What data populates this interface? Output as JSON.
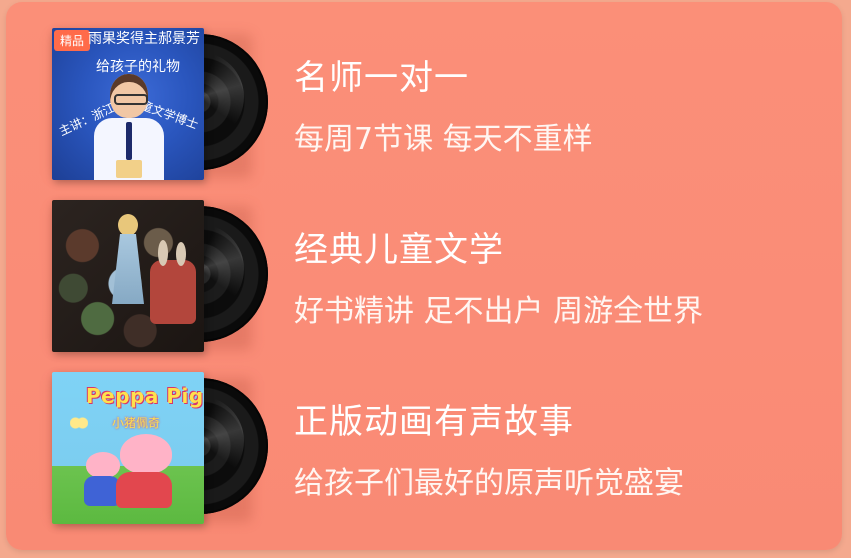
{
  "background_color": "#f4a98e",
  "card_color": "#fb8f78",
  "items": [
    {
      "title": "名师一对一",
      "subtitle": "每周7节课 每天不重样",
      "cover": {
        "badge": "精品",
        "line1": "雨果奖得主郝景芳",
        "line2": "给孩子的礼物",
        "left_text": "主讲：浙江大学",
        "right_text": "儿童文学博士"
      }
    },
    {
      "title": "经典儿童文学",
      "subtitle": "好书精讲 足不出户 周游全世界",
      "cover": {}
    },
    {
      "title": "正版动画有声故事",
      "subtitle": "给孩子们最好的原声听觉盛宴",
      "cover": {
        "logo": "Peppa Pig",
        "sub": "小猪佩奇"
      }
    }
  ]
}
